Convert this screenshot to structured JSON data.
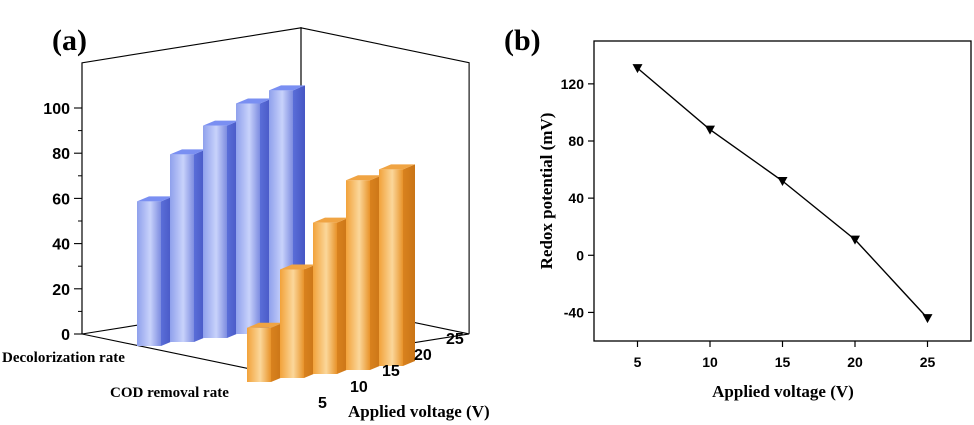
{
  "chart_data": [
    {
      "panel": "(a)",
      "type": "bar",
      "projection": "3d",
      "xlabel": "Applied voltage (V)",
      "categories": [
        "5",
        "10",
        "15",
        "20",
        "25"
      ],
      "depth_labels": [
        "Decolorization rate",
        "COD removal rate"
      ],
      "series": [
        {
          "name": "Decolorization rate",
          "color": "#6F86F0",
          "values": [
            64,
            83,
            94,
            102,
            106
          ]
        },
        {
          "name": "COD removal rate",
          "color": "#F5A33A",
          "values": [
            24,
            48,
            67,
            84,
            87
          ]
        }
      ],
      "zticks": [
        "0",
        "20",
        "40",
        "60",
        "80",
        "100"
      ],
      "zlim": [
        0,
        120
      ]
    },
    {
      "panel": "(b)",
      "type": "line",
      "xlabel": "Applied voltage (V)",
      "ylabel": "Redox potential (mV)",
      "x": [
        5,
        10,
        15,
        20,
        25
      ],
      "y": [
        131,
        88,
        52,
        11,
        -44
      ],
      "xticks": [
        "5",
        "10",
        "15",
        "20",
        "25"
      ],
      "yticks": [
        "-40",
        "0",
        "40",
        "80",
        "120"
      ],
      "xlim": [
        2,
        28
      ],
      "ylim": [
        -60,
        150
      ],
      "marker": "down-triangle",
      "color": "#000000"
    }
  ]
}
